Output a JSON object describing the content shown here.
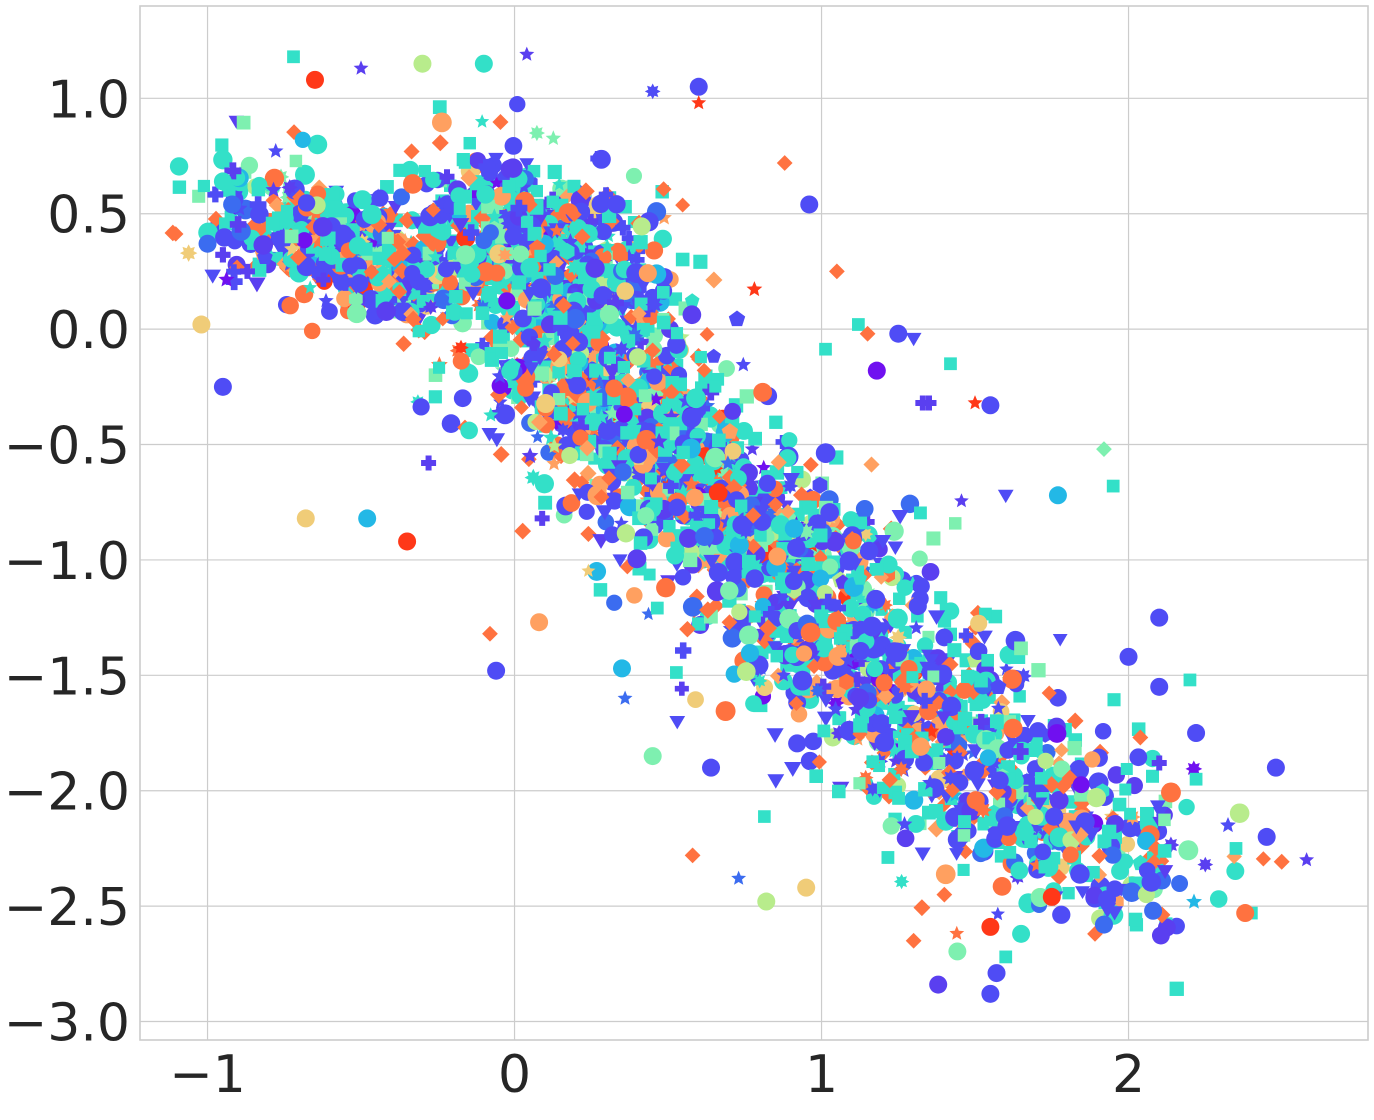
{
  "chart_data": {
    "type": "scatter",
    "title": "",
    "xlabel": "",
    "ylabel": "",
    "xlim": [
      -1.22,
      2.78
    ],
    "ylim": [
      -3.08,
      1.4
    ],
    "x_ticks": [
      -1,
      0,
      1,
      2
    ],
    "x_tick_labels": [
      "−1",
      "0",
      "1",
      "2"
    ],
    "y_ticks": [
      1.0,
      0.5,
      0.0,
      -0.5,
      -1.0,
      -1.5,
      -2.0,
      -2.5,
      -3.0
    ],
    "y_tick_labels": [
      "1.0",
      "0.5",
      "0.0",
      "−0.5",
      "−1.0",
      "−1.5",
      "−2.0",
      "−2.5",
      "−3.0"
    ],
    "grid": true,
    "legend": "none",
    "marker_shapes": [
      "circle",
      "square",
      "diamond",
      "star",
      "triangle-down",
      "plus",
      "burst",
      "pentagon",
      "hexagon"
    ],
    "colors": [
      "#4f4cf5",
      "#5a3ff0",
      "#3b6cf0",
      "#23b8e6",
      "#33e0c8",
      "#7ef0b0",
      "#b8ec8c",
      "#f0cc78",
      "#ffa060",
      "#ff7240",
      "#ff3818",
      "#7010f0"
    ],
    "dense_clusters": [
      {
        "cx": -0.55,
        "cy": 0.35,
        "sx": 0.22,
        "sy": 0.25,
        "n": 520
      },
      {
        "cx": 0.15,
        "cy": 0.3,
        "sx": 0.22,
        "sy": 0.35,
        "n": 650
      },
      {
        "cx": 0.35,
        "cy": -0.35,
        "sx": 0.25,
        "sy": 0.3,
        "n": 600
      },
      {
        "cx": 0.75,
        "cy": -0.85,
        "sx": 0.28,
        "sy": 0.3,
        "n": 560
      },
      {
        "cx": 1.2,
        "cy": -1.5,
        "sx": 0.3,
        "sy": 0.35,
        "n": 520
      },
      {
        "cx": 1.65,
        "cy": -2.1,
        "sx": 0.3,
        "sy": 0.35,
        "n": 400
      }
    ],
    "points": [
      {
        "x": -0.95,
        "y": -0.25,
        "shape": "circle",
        "color": "#4f4cf5"
      },
      {
        "x": -0.68,
        "y": -0.82,
        "shape": "circle",
        "color": "#f0cc78"
      },
      {
        "x": -0.48,
        "y": -0.82,
        "shape": "circle",
        "color": "#23b8e6"
      },
      {
        "x": -0.35,
        "y": -0.92,
        "shape": "circle",
        "color": "#ff3818"
      },
      {
        "x": -0.3,
        "y": 1.15,
        "shape": "circle",
        "color": "#b8ec8c"
      },
      {
        "x": -0.1,
        "y": 1.15,
        "shape": "circle",
        "color": "#33e0c8"
      },
      {
        "x": 0.04,
        "y": 1.19,
        "shape": "star",
        "color": "#5a3ff0"
      },
      {
        "x": -0.65,
        "y": 1.08,
        "shape": "circle",
        "color": "#ff3818"
      },
      {
        "x": -0.72,
        "y": 1.18,
        "shape": "square",
        "color": "#33e0c8"
      },
      {
        "x": -0.5,
        "y": 1.13,
        "shape": "star",
        "color": "#5a3ff0"
      },
      {
        "x": 0.6,
        "y": 1.05,
        "shape": "circle",
        "color": "#4f4cf5"
      },
      {
        "x": 0.45,
        "y": 1.03,
        "shape": "burst",
        "color": "#4f4cf5"
      },
      {
        "x": 0.6,
        "y": 0.98,
        "shape": "star",
        "color": "#ff3818"
      },
      {
        "x": 0.88,
        "y": 0.72,
        "shape": "diamond",
        "color": "#ff7240"
      },
      {
        "x": 0.96,
        "y": 0.54,
        "shape": "circle",
        "color": "#4f4cf5"
      },
      {
        "x": 1.05,
        "y": 0.25,
        "shape": "diamond",
        "color": "#ff7240"
      },
      {
        "x": 1.12,
        "y": 0.02,
        "shape": "square",
        "color": "#33e0c8"
      },
      {
        "x": 1.25,
        "y": -0.02,
        "shape": "circle",
        "color": "#4f4cf5"
      },
      {
        "x": 1.3,
        "y": -0.04,
        "shape": "triangle-down",
        "color": "#4f4cf5"
      },
      {
        "x": 1.42,
        "y": -0.15,
        "shape": "square",
        "color": "#33e0c8"
      },
      {
        "x": 1.15,
        "y": -0.02,
        "shape": "diamond",
        "color": "#ff7240"
      },
      {
        "x": 1.18,
        "y": -0.18,
        "shape": "circle",
        "color": "#7010f0"
      },
      {
        "x": 1.35,
        "y": -0.32,
        "shape": "plus",
        "color": "#5a3ff0"
      },
      {
        "x": 1.5,
        "y": -0.32,
        "shape": "star",
        "color": "#ff3818"
      },
      {
        "x": 1.55,
        "y": -0.33,
        "shape": "circle",
        "color": "#4f4cf5"
      },
      {
        "x": 1.92,
        "y": -0.52,
        "shape": "diamond",
        "color": "#7ef0b0"
      },
      {
        "x": 1.95,
        "y": -0.68,
        "shape": "square",
        "color": "#33e0c8"
      },
      {
        "x": 1.77,
        "y": -0.72,
        "shape": "circle",
        "color": "#23b8e6"
      },
      {
        "x": 1.6,
        "y": -0.72,
        "shape": "triangle-down",
        "color": "#4f4cf5"
      },
      {
        "x": 2.1,
        "y": -1.55,
        "shape": "circle",
        "color": "#4f4cf5"
      },
      {
        "x": 2.1,
        "y": -1.25,
        "shape": "circle",
        "color": "#4f4cf5"
      },
      {
        "x": 2.0,
        "y": -1.42,
        "shape": "circle",
        "color": "#4f4cf5"
      },
      {
        "x": 2.2,
        "y": -1.52,
        "shape": "square",
        "color": "#33e0c8"
      },
      {
        "x": 2.22,
        "y": -1.75,
        "shape": "circle",
        "color": "#4f4cf5"
      },
      {
        "x": 2.1,
        "y": -1.88,
        "shape": "plus",
        "color": "#5a3ff0"
      },
      {
        "x": 2.22,
        "y": -1.95,
        "shape": "square",
        "color": "#33e0c8"
      },
      {
        "x": 2.48,
        "y": -1.9,
        "shape": "circle",
        "color": "#4f4cf5"
      },
      {
        "x": 2.58,
        "y": -2.3,
        "shape": "star",
        "color": "#5a3ff0"
      },
      {
        "x": 2.45,
        "y": -2.2,
        "shape": "circle",
        "color": "#4f4cf5"
      },
      {
        "x": 2.35,
        "y": -2.25,
        "shape": "square",
        "color": "#33e0c8"
      },
      {
        "x": 2.4,
        "y": -2.53,
        "shape": "square",
        "color": "#33e0c8"
      },
      {
        "x": 2.38,
        "y": -2.53,
        "shape": "circle",
        "color": "#ff7240"
      },
      {
        "x": 2.25,
        "y": -2.32,
        "shape": "burst",
        "color": "#5a3ff0"
      },
      {
        "x": 2.08,
        "y": -2.52,
        "shape": "circle",
        "color": "#3b6cf0"
      },
      {
        "x": 1.93,
        "y": -2.47,
        "shape": "circle",
        "color": "#4f4cf5"
      },
      {
        "x": 1.92,
        "y": -2.58,
        "shape": "circle",
        "color": "#3b6cf0"
      },
      {
        "x": 1.75,
        "y": -2.46,
        "shape": "circle",
        "color": "#ff3818"
      },
      {
        "x": 1.55,
        "y": -2.59,
        "shape": "circle",
        "color": "#ff3818"
      },
      {
        "x": 1.55,
        "y": -2.88,
        "shape": "circle",
        "color": "#4f4cf5"
      },
      {
        "x": 1.57,
        "y": -2.79,
        "shape": "circle",
        "color": "#4f4cf5"
      },
      {
        "x": 1.38,
        "y": -2.84,
        "shape": "circle",
        "color": "#5a3ff0"
      },
      {
        "x": 1.3,
        "y": -2.65,
        "shape": "diamond",
        "color": "#ff7240"
      },
      {
        "x": 1.4,
        "y": -2.45,
        "shape": "diamond",
        "color": "#ff7240"
      },
      {
        "x": 1.6,
        "y": -2.72,
        "shape": "square",
        "color": "#33e0c8"
      },
      {
        "x": 1.65,
        "y": -2.62,
        "shape": "circle",
        "color": "#33e0c8"
      },
      {
        "x": 0.82,
        "y": -2.48,
        "shape": "circle",
        "color": "#b8ec8c"
      },
      {
        "x": 0.95,
        "y": -2.42,
        "shape": "circle",
        "color": "#f0cc78"
      },
      {
        "x": 0.58,
        "y": -2.28,
        "shape": "diamond",
        "color": "#ff7240"
      },
      {
        "x": 0.73,
        "y": -2.38,
        "shape": "star",
        "color": "#3b6cf0"
      },
      {
        "x": 0.45,
        "y": -1.85,
        "shape": "circle",
        "color": "#7ef0b0"
      },
      {
        "x": -0.06,
        "y": -1.48,
        "shape": "circle",
        "color": "#4f4cf5"
      },
      {
        "x": -0.08,
        "y": -1.32,
        "shape": "diamond",
        "color": "#ff7240"
      },
      {
        "x": 0.08,
        "y": -1.27,
        "shape": "circle",
        "color": "#ffa060"
      },
      {
        "x": 0.35,
        "y": -1.47,
        "shape": "circle",
        "color": "#23b8e6"
      },
      {
        "x": 0.7,
        "y": -1.27,
        "shape": "diamond",
        "color": "#ff7240"
      },
      {
        "x": 0.53,
        "y": -1.7,
        "shape": "triangle-down",
        "color": "#4f4cf5"
      },
      {
        "x": 0.36,
        "y": -1.6,
        "shape": "star",
        "color": "#3b6cf0"
      },
      {
        "x": 0.64,
        "y": -1.9,
        "shape": "circle",
        "color": "#4f4cf5"
      },
      {
        "x": -0.95,
        "y": 0.64,
        "shape": "circle",
        "color": "#33e0c8"
      },
      {
        "x": -0.92,
        "y": 0.54,
        "shape": "circle",
        "color": "#3b6cf0"
      },
      {
        "x": -1.0,
        "y": 0.37,
        "shape": "circle",
        "color": "#3b6cf0"
      },
      {
        "x": -1.02,
        "y": 0.02,
        "shape": "circle",
        "color": "#f0cc78"
      },
      {
        "x": -0.87,
        "y": 0.25,
        "shape": "plus",
        "color": "#5a3ff0"
      },
      {
        "x": -0.22,
        "y": 0.66,
        "shape": "plus",
        "color": "#5a3ff0"
      },
      {
        "x": -0.28,
        "y": -0.58,
        "shape": "plus",
        "color": "#5a3ff0"
      },
      {
        "x": 0.09,
        "y": -0.82,
        "shape": "plus",
        "color": "#5a3ff0"
      },
      {
        "x": 1.33,
        "y": -0.32,
        "shape": "plus",
        "color": "#5a3ff0"
      }
    ]
  }
}
